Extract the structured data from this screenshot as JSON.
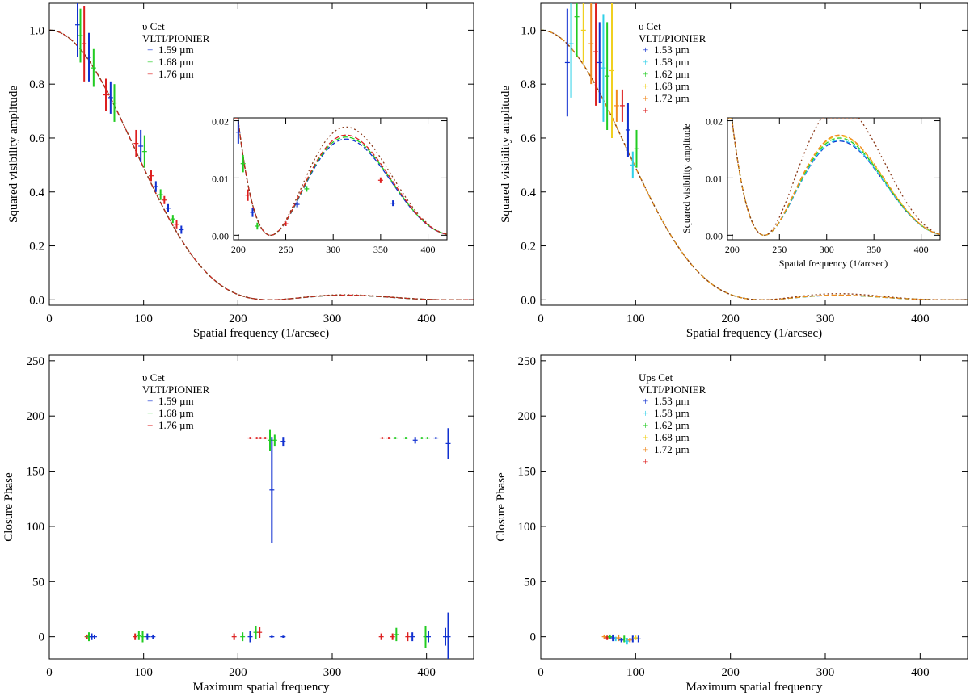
{
  "colors": {
    "axis": "#000000",
    "model_line": "#8b3a1a",
    "blue": "#1030d0",
    "cyan": "#30d0e8",
    "green": "#22cc22",
    "yellow": "#f0d020",
    "orange": "#f08a20",
    "red": "#dd1f1f"
  },
  "chart_data": [
    {
      "id": "p1",
      "type": "line",
      "title": "",
      "xlabel": "Spatial frequency (1/arcsec)",
      "ylabel": "Squared visibility amplitude",
      "xlim": [
        0,
        450
      ],
      "ylim": [
        -0.02,
        1.1
      ],
      "xticks": [
        0,
        100,
        200,
        300,
        400
      ],
      "yticks": [
        0.0,
        0.2,
        0.4,
        0.6,
        0.8,
        1.0
      ],
      "ytick_labels": [
        "0.0",
        "0.2",
        "0.4",
        "0.6",
        "0.8",
        "1.0"
      ],
      "legend": {
        "position": "top-center",
        "star": "υ Cet",
        "instrument": "VLTI/PIONIER",
        "entries": [
          {
            "label": "1.59 µm",
            "color": "blue"
          },
          {
            "label": "1.68 µm",
            "color": "green"
          },
          {
            "label": "1.76 µm",
            "color": "red"
          }
        ]
      },
      "model": {
        "first_null": 234,
        "theta_scale": 1.0,
        "series_colors": [
          "blue",
          "green",
          "red",
          "model_line"
        ]
      },
      "observations": [
        {
          "x": 30,
          "y": 1.02,
          "err": 0.12
        },
        {
          "x": 33,
          "y": 0.98,
          "err": 0.1
        },
        {
          "x": 37,
          "y": 0.95,
          "err": 0.14
        },
        {
          "x": 42,
          "y": 0.9,
          "err": 0.09
        },
        {
          "x": 47,
          "y": 0.86,
          "err": 0.07
        },
        {
          "x": 60,
          "y": 0.76,
          "err": 0.06
        },
        {
          "x": 65,
          "y": 0.75,
          "err": 0.06
        },
        {
          "x": 69,
          "y": 0.73,
          "err": 0.07
        },
        {
          "x": 92,
          "y": 0.58,
          "err": 0.05
        },
        {
          "x": 97,
          "y": 0.57,
          "err": 0.06
        },
        {
          "x": 101,
          "y": 0.55,
          "err": 0.06
        },
        {
          "x": 108,
          "y": 0.46,
          "err": 0.02
        },
        {
          "x": 113,
          "y": 0.42,
          "err": 0.02
        },
        {
          "x": 118,
          "y": 0.39,
          "err": 0.02
        },
        {
          "x": 122,
          "y": 0.37,
          "err": 0.015
        },
        {
          "x": 126,
          "y": 0.34,
          "err": 0.015
        },
        {
          "x": 131,
          "y": 0.3,
          "err": 0.015
        },
        {
          "x": 135,
          "y": 0.28,
          "err": 0.015
        },
        {
          "x": 140,
          "y": 0.26,
          "err": 0.015
        }
      ],
      "inset": {
        "xlim": [
          195,
          420
        ],
        "ylim": [
          -0.0008,
          0.0205
        ],
        "xticks": [
          200,
          250,
          300,
          350,
          400
        ],
        "yticks": [
          0.0,
          0.01,
          0.02
        ],
        "ytick_labels": [
          "0.00",
          "0.01",
          "0.02"
        ],
        "xlabel": "",
        "ylabel": "",
        "observations": [
          {
            "x": 200,
            "y": 0.018,
            "err": 0.002
          },
          {
            "x": 205,
            "y": 0.0125,
            "err": 0.0015
          },
          {
            "x": 210,
            "y": 0.007,
            "err": 0.001
          },
          {
            "x": 215,
            "y": 0.004,
            "err": 0.0008
          },
          {
            "x": 220,
            "y": 0.0016,
            "err": 0.0006
          },
          {
            "x": 250,
            "y": 0.002,
            "err": 0.0004
          },
          {
            "x": 262,
            "y": 0.0054,
            "err": 0.0005
          },
          {
            "x": 272,
            "y": 0.0081,
            "err": 0.0005
          },
          {
            "x": 350,
            "y": 0.0096,
            "err": 0.0005
          },
          {
            "x": 363,
            "y": 0.0056,
            "err": 0.0005
          }
        ]
      }
    },
    {
      "id": "p2",
      "type": "line",
      "title": "",
      "xlabel": "Spatial frequency (1/arcsec)",
      "ylabel": "Squared visibility amplitude",
      "xlim": [
        0,
        450
      ],
      "ylim": [
        -0.02,
        1.1
      ],
      "xticks": [
        0,
        100,
        200,
        300,
        400
      ],
      "yticks": [
        0.0,
        0.2,
        0.4,
        0.6,
        0.8,
        1.0
      ],
      "ytick_labels": [
        "0.0",
        "0.2",
        "0.4",
        "0.6",
        "0.8",
        "1.0"
      ],
      "legend": {
        "position": "top-center",
        "star": "υ Cet",
        "instrument": "VLTI/PIONIER",
        "entries": [
          {
            "label": "1.53 µm",
            "color": "blue"
          },
          {
            "label": "1.58 µm",
            "color": "cyan"
          },
          {
            "label": "1.62 µm",
            "color": "green"
          },
          {
            "label": "1.68 µm",
            "color": "yellow"
          },
          {
            "label": "1.72 µm",
            "color": "orange"
          },
          {
            "label": "",
            "color": "red"
          }
        ]
      },
      "model": {
        "first_null": 234,
        "theta_scale": 1.0,
        "series_colors": [
          "blue",
          "cyan",
          "green",
          "yellow",
          "orange",
          "model_line"
        ]
      },
      "observations": [
        {
          "x": 28,
          "y": 0.88,
          "err": 0.2
        },
        {
          "x": 32,
          "y": 0.95,
          "err": 0.2
        },
        {
          "x": 38,
          "y": 1.05,
          "err": 0.15
        },
        {
          "x": 45,
          "y": 1.0,
          "err": 0.12
        },
        {
          "x": 53,
          "y": 0.95,
          "err": 0.15
        },
        {
          "x": 58,
          "y": 0.92,
          "err": 0.2
        },
        {
          "x": 62,
          "y": 0.88,
          "err": 0.15
        },
        {
          "x": 66,
          "y": 0.86,
          "err": 0.2
        },
        {
          "x": 70,
          "y": 0.83,
          "err": 0.2
        },
        {
          "x": 75,
          "y": 0.85,
          "err": 0.25
        },
        {
          "x": 80,
          "y": 0.72,
          "err": 0.06
        },
        {
          "x": 86,
          "y": 0.72,
          "err": 0.06
        },
        {
          "x": 92,
          "y": 0.63,
          "err": 0.1
        },
        {
          "x": 97,
          "y": 0.5,
          "err": 0.05
        },
        {
          "x": 101,
          "y": 0.56,
          "err": 0.07
        }
      ],
      "inset": {
        "xlim": [
          195,
          420
        ],
        "ylim": [
          -0.0008,
          0.0205
        ],
        "xticks": [
          200,
          250,
          300,
          350,
          400
        ],
        "yticks": [
          0.0,
          0.01,
          0.02
        ],
        "ytick_labels": [
          "0.00",
          "0.01",
          "0.02"
        ],
        "xlabel": "Spatial frequency (1/arcsec)",
        "ylabel": "Squared visibility amplitude",
        "observations": []
      }
    },
    {
      "id": "p3",
      "type": "scatter",
      "title": "",
      "xlabel": "Maximum spatial frequency",
      "ylabel": "Closure Phase",
      "xlim": [
        0,
        450
      ],
      "ylim": [
        -20,
        255
      ],
      "xticks": [
        0,
        100,
        200,
        300,
        400
      ],
      "yticks": [
        0,
        50,
        100,
        150,
        200,
        250
      ],
      "ytick_labels": [
        "0",
        "50",
        "100",
        "150",
        "200",
        "250"
      ],
      "legend": {
        "position": "top-center",
        "star": "υ Cet",
        "instrument": "VLTI/PIONIER",
        "entries": [
          {
            "label": "1.59 µm",
            "color": "blue"
          },
          {
            "label": "1.68 µm",
            "color": "green"
          },
          {
            "label": "1.76 µm",
            "color": "red"
          }
        ]
      },
      "points": [
        {
          "x": 40,
          "y": 0,
          "err": 2,
          "color": "red"
        },
        {
          "x": 42,
          "y": 0,
          "err": 4,
          "color": "green"
        },
        {
          "x": 45,
          "y": 0,
          "err": 3,
          "color": "blue"
        },
        {
          "x": 48,
          "y": 0,
          "err": 2,
          "color": "blue"
        },
        {
          "x": 91,
          "y": 0,
          "err": 3,
          "color": "red"
        },
        {
          "x": 95,
          "y": 1,
          "err": 4,
          "color": "green"
        },
        {
          "x": 99,
          "y": 0,
          "err": 5,
          "color": "green"
        },
        {
          "x": 104,
          "y": 0,
          "err": 3,
          "color": "blue"
        },
        {
          "x": 110,
          "y": 0,
          "err": 2,
          "color": "blue"
        },
        {
          "x": 196,
          "y": 0,
          "err": 3,
          "color": "red"
        },
        {
          "x": 205,
          "y": 0,
          "err": 4,
          "color": "green"
        },
        {
          "x": 213,
          "y": 0,
          "err": 5,
          "color": "blue"
        },
        {
          "x": 219,
          "y": 4,
          "err": 6,
          "color": "green"
        },
        {
          "x": 223,
          "y": 4,
          "err": 5,
          "color": "red"
        },
        {
          "x": 236,
          "y": 0,
          "err": 1,
          "color": "blue"
        },
        {
          "x": 248,
          "y": 0,
          "err": 1,
          "color": "blue"
        },
        {
          "x": 352,
          "y": 0,
          "err": 3,
          "color": "red"
        },
        {
          "x": 364,
          "y": 0,
          "err": 3,
          "color": "red"
        },
        {
          "x": 368,
          "y": 2,
          "err": 6,
          "color": "green"
        },
        {
          "x": 380,
          "y": 0,
          "err": 4,
          "color": "red"
        },
        {
          "x": 385,
          "y": 0,
          "err": 4,
          "color": "blue"
        },
        {
          "x": 399,
          "y": 0,
          "err": 10,
          "color": "green"
        },
        {
          "x": 402,
          "y": 0,
          "err": 5,
          "color": "blue"
        },
        {
          "x": 420,
          "y": 0,
          "err": 8,
          "color": "blue"
        },
        {
          "x": 423,
          "y": 0,
          "err": 22,
          "color": "blue"
        },
        {
          "x": 213,
          "y": 180,
          "err": 1,
          "color": "red"
        },
        {
          "x": 220,
          "y": 180,
          "err": 1,
          "color": "red"
        },
        {
          "x": 224,
          "y": 180,
          "err": 1,
          "color": "red"
        },
        {
          "x": 229,
          "y": 180,
          "err": 1,
          "color": "red"
        },
        {
          "x": 234,
          "y": 178,
          "err": 10,
          "color": "green"
        },
        {
          "x": 236,
          "y": 133,
          "err": 48,
          "color": "blue"
        },
        {
          "x": 239,
          "y": 178,
          "err": 5,
          "color": "green"
        },
        {
          "x": 248,
          "y": 177,
          "err": 4,
          "color": "blue"
        },
        {
          "x": 353,
          "y": 180,
          "err": 1,
          "color": "red"
        },
        {
          "x": 360,
          "y": 180,
          "err": 1,
          "color": "red"
        },
        {
          "x": 367,
          "y": 180,
          "err": 1,
          "color": "green"
        },
        {
          "x": 378,
          "y": 180,
          "err": 1,
          "color": "green"
        },
        {
          "x": 388,
          "y": 178,
          "err": 3,
          "color": "blue"
        },
        {
          "x": 395,
          "y": 180,
          "err": 1,
          "color": "green"
        },
        {
          "x": 401,
          "y": 180,
          "err": 1,
          "color": "green"
        },
        {
          "x": 410,
          "y": 180,
          "err": 1,
          "color": "blue"
        },
        {
          "x": 423,
          "y": 175,
          "err": 14,
          "color": "blue"
        }
      ]
    },
    {
      "id": "p4",
      "type": "scatter",
      "title": "",
      "xlabel": "Maximum spatial frequency",
      "ylabel": "Closure Phase",
      "xlim": [
        0,
        450
      ],
      "ylim": [
        -20,
        255
      ],
      "xticks": [
        0,
        100,
        200,
        300,
        400
      ],
      "yticks": [
        0,
        50,
        100,
        150,
        200,
        250
      ],
      "ytick_labels": [
        "0",
        "50",
        "100",
        "150",
        "200",
        "250"
      ],
      "legend": {
        "position": "top-center",
        "star": "Ups Cet",
        "instrument": "VLTI/PIONIER",
        "entries": [
          {
            "label": "1.53 µm",
            "color": "blue"
          },
          {
            "label": "1.58 µm",
            "color": "cyan"
          },
          {
            "label": "1.62 µm",
            "color": "green"
          },
          {
            "label": "1.68 µm",
            "color": "yellow"
          },
          {
            "label": "1.72 µm",
            "color": "orange"
          },
          {
            "label": "",
            "color": "red"
          }
        ]
      },
      "points": [
        {
          "x": 67,
          "y": 0,
          "err": 2,
          "color": "orange"
        },
        {
          "x": 70,
          "y": -1,
          "err": 2,
          "color": "red"
        },
        {
          "x": 73,
          "y": 0,
          "err": 2,
          "color": "green"
        },
        {
          "x": 76,
          "y": -1,
          "err": 3,
          "color": "blue"
        },
        {
          "x": 79,
          "y": -2,
          "err": 2,
          "color": "cyan"
        },
        {
          "x": 82,
          "y": -1,
          "err": 3,
          "color": "orange"
        },
        {
          "x": 85,
          "y": -3,
          "err": 2,
          "color": "blue"
        },
        {
          "x": 88,
          "y": -2,
          "err": 3,
          "color": "green"
        },
        {
          "x": 91,
          "y": -4,
          "err": 3,
          "color": "cyan"
        },
        {
          "x": 94,
          "y": -3,
          "err": 2,
          "color": "orange"
        },
        {
          "x": 97,
          "y": -2,
          "err": 3,
          "color": "blue"
        },
        {
          "x": 100,
          "y": -1,
          "err": 2,
          "color": "yellow"
        },
        {
          "x": 103,
          "y": -2,
          "err": 3,
          "color": "blue"
        }
      ]
    }
  ]
}
